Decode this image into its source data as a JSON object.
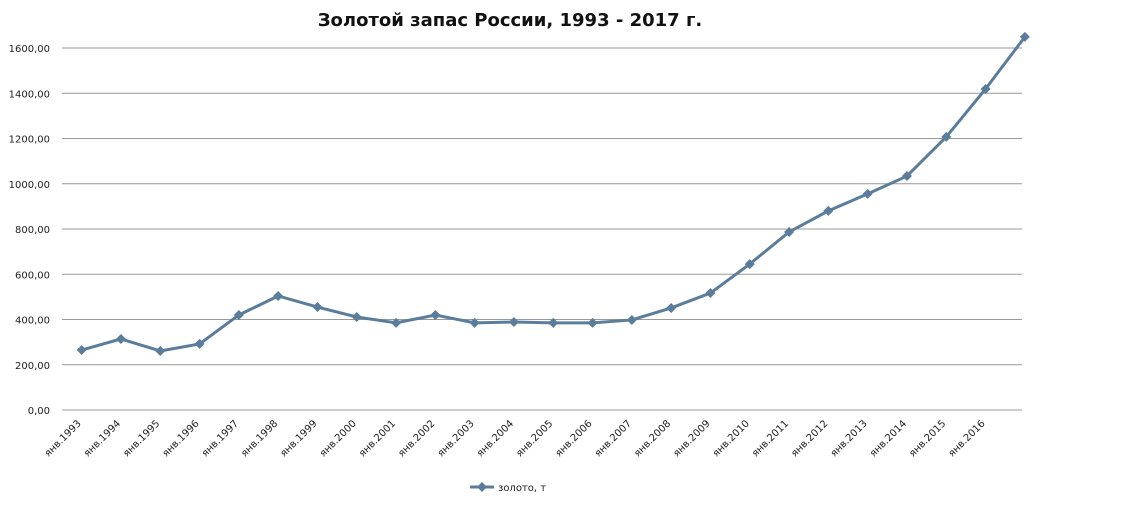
{
  "chart_data": {
    "type": "line",
    "title": "Золотой запас России, 1993 - 2017 г.",
    "categories": [
      "янв.1993",
      "янв.1994",
      "янв.1995",
      "янв.1996",
      "янв.1997",
      "янв.1998",
      "янв.1999",
      "янв.2000",
      "янв.2001",
      "янв.2002",
      "янв.2003",
      "янв.2004",
      "янв.2005",
      "янв.2006",
      "янв.2007",
      "янв.2008",
      "янв.2009",
      "янв.2010",
      "янв.2011",
      "янв.2012",
      "янв.2013",
      "янв.2014",
      "янв.2015",
      "янв.2016",
      null
    ],
    "series": [
      {
        "name": "золото, т",
        "color": "#5a7d9c",
        "values": [
          265,
          314,
          261,
          292,
          420,
          504,
          455,
          411,
          385,
          420,
          385,
          389,
          385,
          385,
          398,
          451,
          517,
          645,
          787,
          880,
          955,
          1034,
          1207,
          1419,
          1649
        ]
      }
    ],
    "ylim": [
      0,
      1600
    ],
    "yticks": [
      {
        "value": 0,
        "label": "0,00"
      },
      {
        "value": 200,
        "label": "200,00"
      },
      {
        "value": 400,
        "label": "400,00"
      },
      {
        "value": 600,
        "label": "600,00"
      },
      {
        "value": 800,
        "label": "800,00"
      },
      {
        "value": 1000,
        "label": "1000,00"
      },
      {
        "value": 1200,
        "label": "1200,00"
      },
      {
        "value": 1400,
        "label": "1400,00"
      },
      {
        "value": 1600,
        "label": "1600,00"
      }
    ],
    "grid": true,
    "legend": "bottom"
  }
}
